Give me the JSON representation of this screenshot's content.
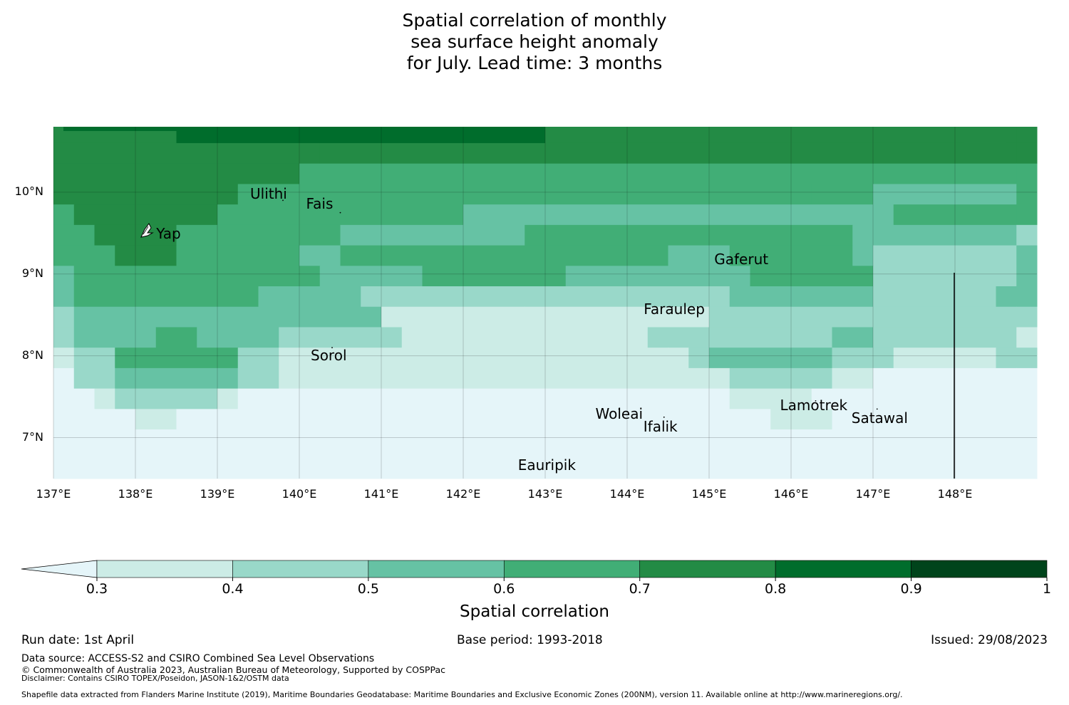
{
  "title": {
    "lines": [
      "Spatial correlation of monthly",
      "sea surface height anomaly",
      "for July. Lead time: 3 months"
    ]
  },
  "map": {
    "lon_ticks": [
      "137°E",
      "138°E",
      "139°E",
      "140°E",
      "141°E",
      "142°E",
      "143°E",
      "144°E",
      "145°E",
      "146°E",
      "147°E",
      "148°E"
    ],
    "lat_ticks": [
      "10°N",
      "9°N",
      "8°N",
      "7°N"
    ],
    "islands": [
      {
        "name": "Ulithi",
        "lon": 139.8,
        "lat": 9.9
      },
      {
        "name": "Fais",
        "lon": 140.5,
        "lat": 9.75
      },
      {
        "name": "Yap",
        "lon": 138.15,
        "lat": 9.5
      },
      {
        "name": "Gaferut",
        "lon": 145.35,
        "lat": 9.2
      },
      {
        "name": "Faraulep",
        "lon": 144.55,
        "lat": 8.6
      },
      {
        "name": "Sorol",
        "lon": 140.4,
        "lat": 8.1
      },
      {
        "name": "Woleai",
        "lon": 143.9,
        "lat": 7.35
      },
      {
        "name": "Ifalik",
        "lon": 144.45,
        "lat": 7.25
      },
      {
        "name": "Lamotrek",
        "lon": 146.3,
        "lat": 7.45
      },
      {
        "name": "Satawal",
        "lon": 147.05,
        "lat": 7.35
      },
      {
        "name": "Eauripik",
        "lon": 143.05,
        "lat": 6.7
      }
    ],
    "island_labels": [
      "Ulithi",
      "Fais",
      "Yap",
      "Gaferut",
      "Faraulep",
      "Sorol",
      "Woleai",
      "Ifalik",
      "Lamotrek",
      "Satawal",
      "Eauripik"
    ]
  },
  "colorbar": {
    "label": "Spatial correlation",
    "ticks": [
      "0.3",
      "0.4",
      "0.5",
      "0.6",
      "0.7",
      "0.8",
      "0.9",
      "1"
    ],
    "colors": [
      "#e5f5f9",
      "#ccece6",
      "#99d8c9",
      "#66c2a4",
      "#41ae76",
      "#238b45",
      "#006d2c",
      "#00441b"
    ]
  },
  "footer": {
    "run_date": "Run date: 1st April",
    "base_period": "Base period: 1993-2018",
    "issued": "Issued: 29/08/2023",
    "data_source": "Data source: ACCESS-S2 and CSIRO Combined Sea Level Observations",
    "copyright": "© Commonwealth of Australia 2023, Australian Bureau of Meteorology, Supported by COSPPac",
    "disclaimer": "Disclaimer: Contains CSIRO TOPEX/Poseidon, JASON-1&2/OSTM data",
    "shapefile": "Shapefile data extracted from Flanders Marine Institute (2019), Maritime Boundaries Geodatabase: Maritime Boundaries and Exclusive Economic Zones (200NM), version 11. Available online at http://www.marineregions.org/."
  }
}
